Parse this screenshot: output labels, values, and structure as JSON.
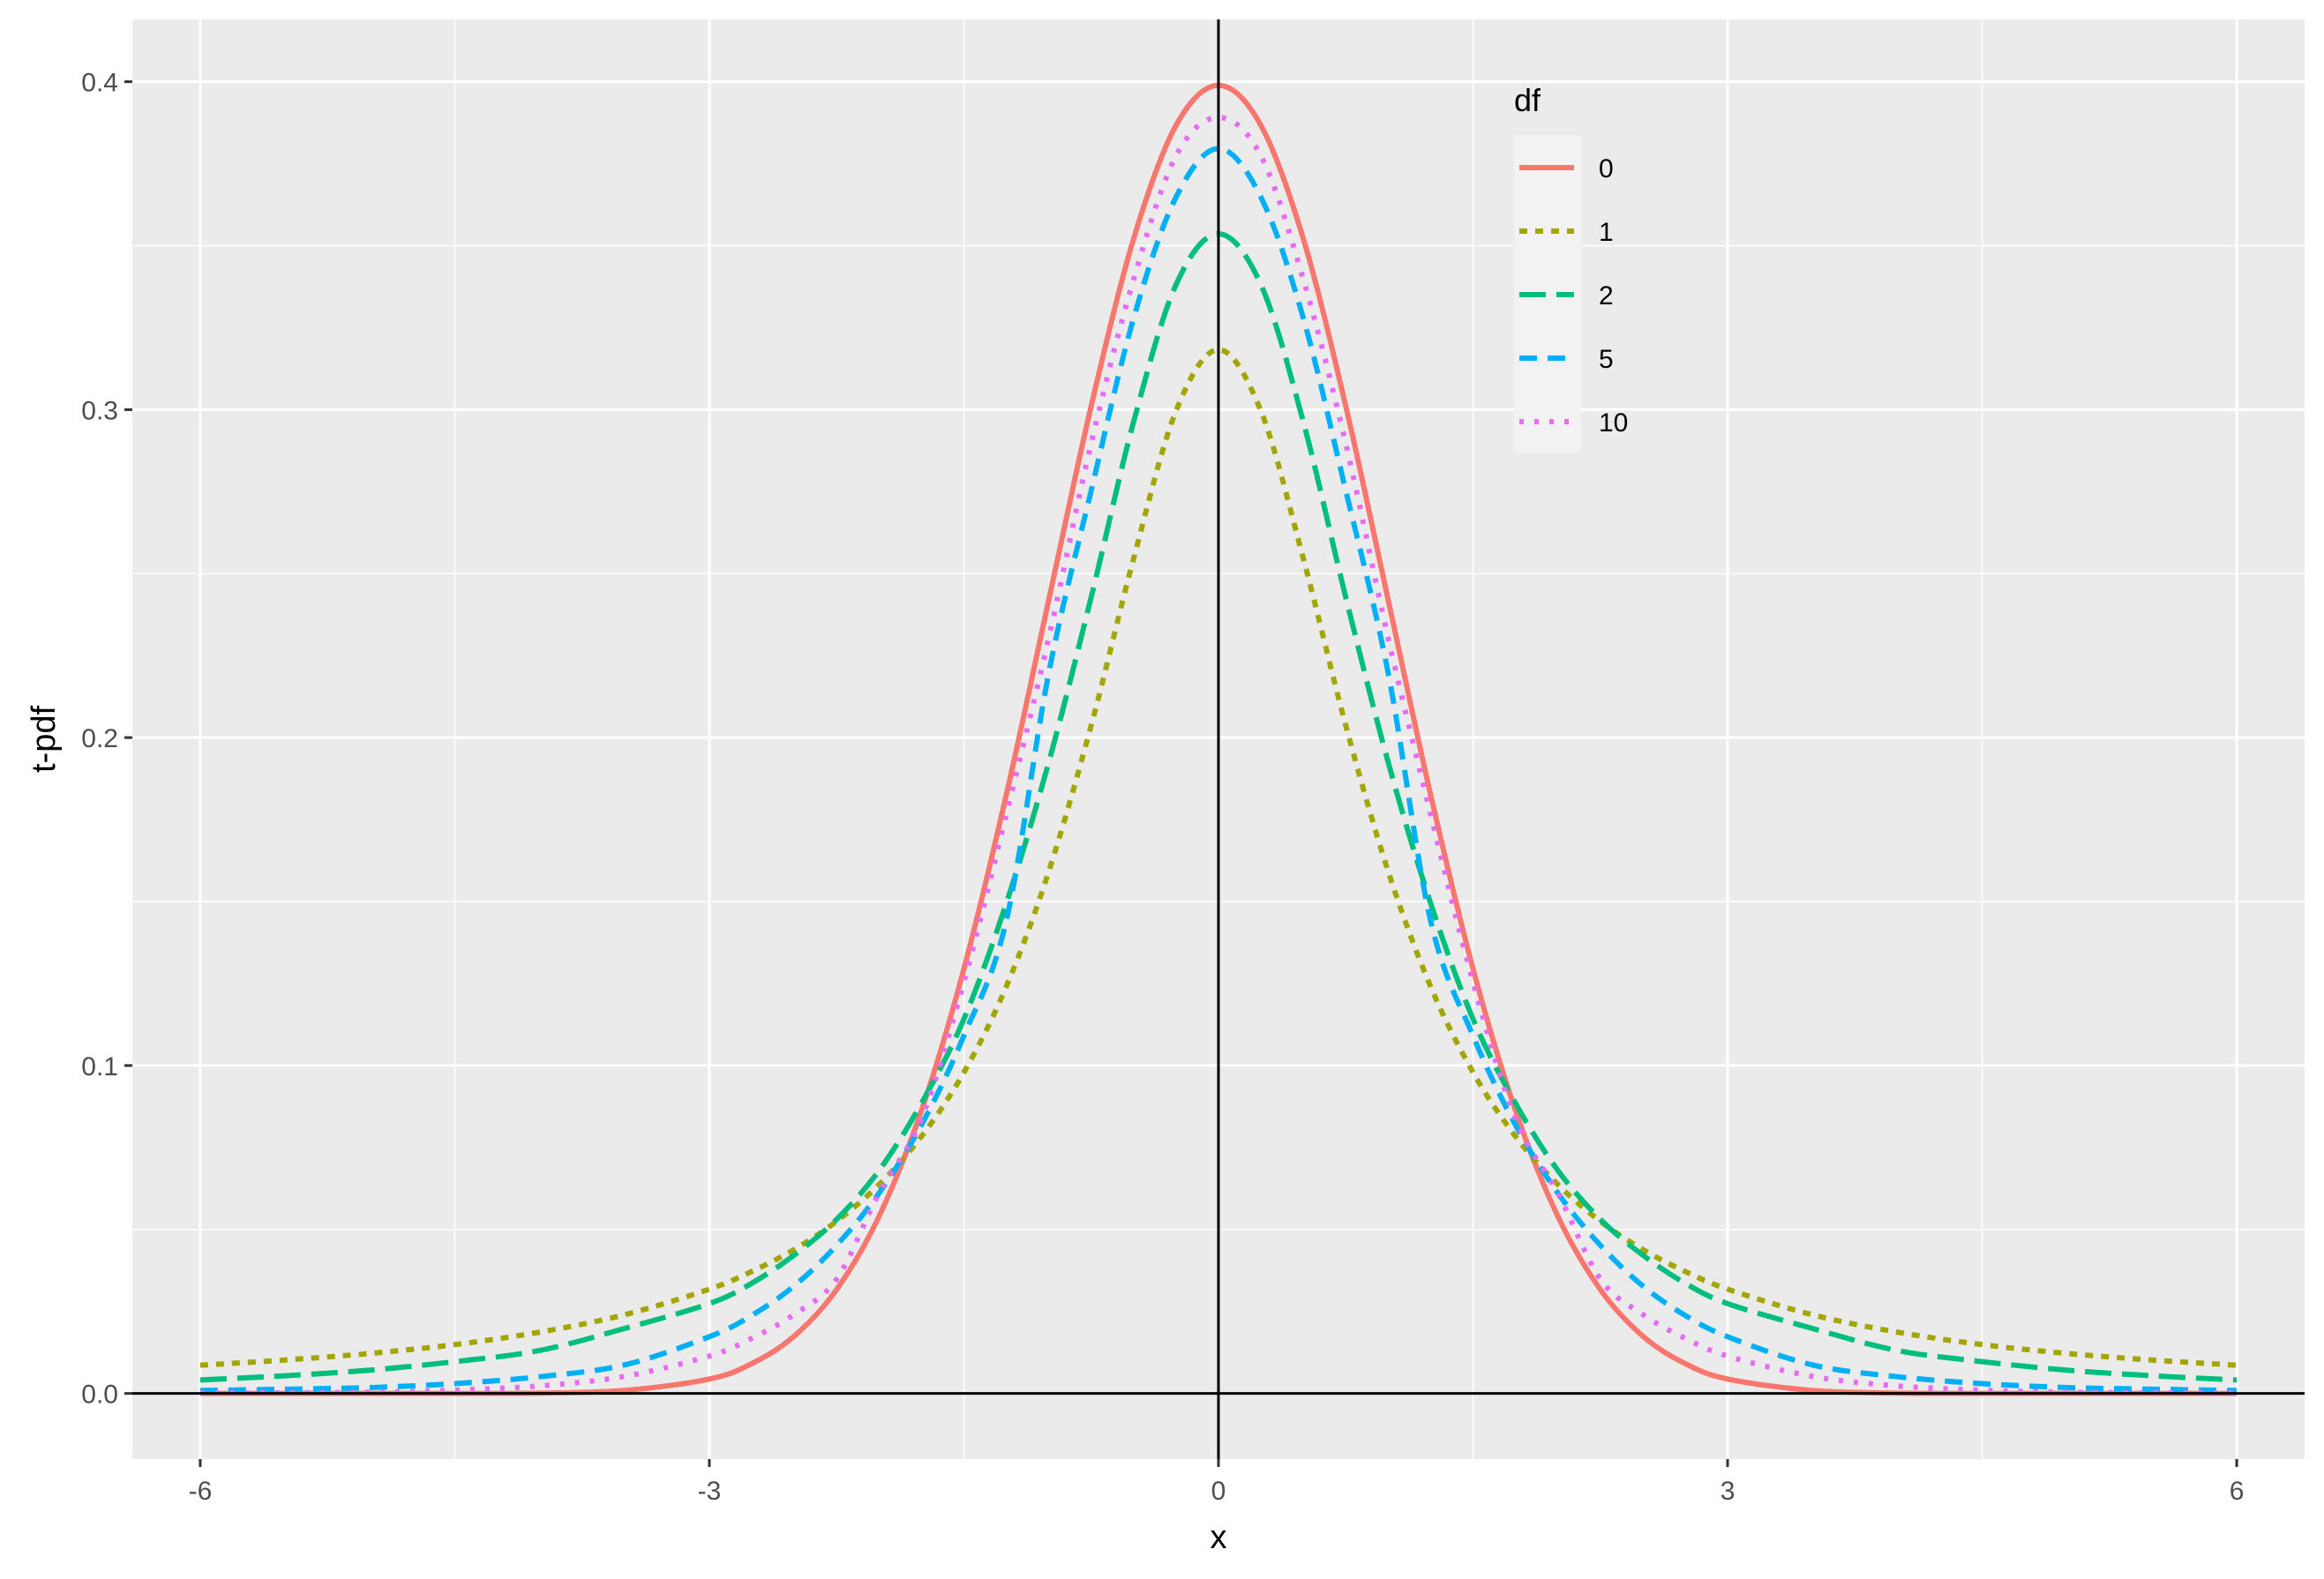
{
  "chart_data": {
    "type": "line",
    "xlabel": "x",
    "ylabel": "t-pdf",
    "xlim": [
      -6.4,
      6.4
    ],
    "ylim": [
      -0.02,
      0.419
    ],
    "x_ticks": [
      -6,
      -3,
      0,
      3,
      6
    ],
    "x_tick_labels": [
      "-6",
      "-3",
      "0",
      "3",
      "6"
    ],
    "y_ticks": [
      0.0,
      0.1,
      0.2,
      0.3,
      0.4
    ],
    "y_tick_labels": [
      "0.0",
      "0.1",
      "0.2",
      "0.3",
      "0.4"
    ],
    "grid": true,
    "reference_lines": {
      "x": 0,
      "y": 0
    },
    "legend": {
      "title": "df",
      "position": "top-right-inside"
    },
    "x": [
      -6.0,
      -5.5,
      -5.0,
      -4.5,
      -4.0,
      -3.5,
      -3.0,
      -2.75,
      -2.5,
      -2.25,
      -2.0,
      -1.75,
      -1.5,
      -1.25,
      -1.0,
      -0.75,
      -0.5,
      -0.25,
      0.0,
      0.25,
      0.5,
      0.75,
      1.0,
      1.25,
      1.5,
      1.75,
      2.0,
      2.25,
      2.5,
      2.75,
      3.0,
      3.5,
      4.0,
      4.5,
      5.0,
      5.5,
      6.0
    ],
    "series": [
      {
        "name": "0",
        "color": "#F8766D",
        "dash": "solid",
        "values": [
          0.0,
          0.0,
          0.0,
          0.0,
          0.0001,
          0.0009,
          0.0044,
          0.0091,
          0.0175,
          0.0317,
          0.054,
          0.0863,
          0.1295,
          0.1826,
          0.242,
          0.3011,
          0.3521,
          0.3867,
          0.3989,
          0.3867,
          0.3521,
          0.3011,
          0.242,
          0.1826,
          0.1295,
          0.0863,
          0.054,
          0.0317,
          0.0175,
          0.0091,
          0.0044,
          0.0009,
          0.0001,
          0.0,
          0.0,
          0.0,
          0.0
        ]
      },
      {
        "name": "1",
        "color": "#A3A500",
        "dash": "dotted",
        "values": [
          0.0086,
          0.0102,
          0.0122,
          0.0149,
          0.0187,
          0.024,
          0.0318,
          0.0372,
          0.0439,
          0.0525,
          0.0637,
          0.0784,
          0.0979,
          0.1241,
          0.1592,
          0.2037,
          0.2546,
          0.2996,
          0.3183,
          0.2996,
          0.2546,
          0.2037,
          0.1592,
          0.1241,
          0.0979,
          0.0784,
          0.0637,
          0.0525,
          0.0439,
          0.0372,
          0.0318,
          0.024,
          0.0187,
          0.0149,
          0.0122,
          0.0102,
          0.0086
        ]
      },
      {
        "name": "2",
        "color": "#00BF7D",
        "dash": "long-dash",
        "values": [
          0.0041,
          0.0054,
          0.0071,
          0.0097,
          0.0131,
          0.0198,
          0.0274,
          0.0336,
          0.0422,
          0.0531,
          0.068,
          0.0885,
          0.1142,
          0.1495,
          0.1925,
          0.2428,
          0.2963,
          0.3381,
          0.3536,
          0.3381,
          0.2963,
          0.2428,
          0.1925,
          0.1495,
          0.1142,
          0.0885,
          0.068,
          0.0531,
          0.0422,
          0.0336,
          0.0274,
          0.0198,
          0.0131,
          0.0097,
          0.0071,
          0.0054,
          0.0041
        ]
      },
      {
        "name": "5",
        "color": "#00B0F6",
        "dash": "dashed",
        "values": [
          0.0009,
          0.0013,
          0.0018,
          0.003,
          0.0051,
          0.0087,
          0.0173,
          0.0238,
          0.0328,
          0.0452,
          0.0611,
          0.0819,
          0.1091,
          0.1442,
          0.2197,
          0.2753,
          0.3279,
          0.3648,
          0.3796,
          0.3648,
          0.3279,
          0.2753,
          0.2197,
          0.1442,
          0.1091,
          0.0819,
          0.0611,
          0.0452,
          0.0328,
          0.0238,
          0.0173,
          0.0087,
          0.0051,
          0.003,
          0.0018,
          0.0013,
          0.0009
        ]
      },
      {
        "name": "10",
        "color": "#E76BF3",
        "dash": "dot",
        "values": [
          0.0001,
          0.0002,
          0.0004,
          0.001,
          0.0023,
          0.0052,
          0.0114,
          0.0168,
          0.0241,
          0.0349,
          0.0611,
          0.0838,
          0.1255,
          0.1766,
          0.2304,
          0.2897,
          0.3397,
          0.3774,
          0.3891,
          0.3774,
          0.3397,
          0.2897,
          0.2304,
          0.1766,
          0.1255,
          0.0838,
          0.0611,
          0.0349,
          0.0241,
          0.0168,
          0.0114,
          0.0052,
          0.0023,
          0.001,
          0.0004,
          0.0002,
          0.0001
        ]
      }
    ]
  }
}
